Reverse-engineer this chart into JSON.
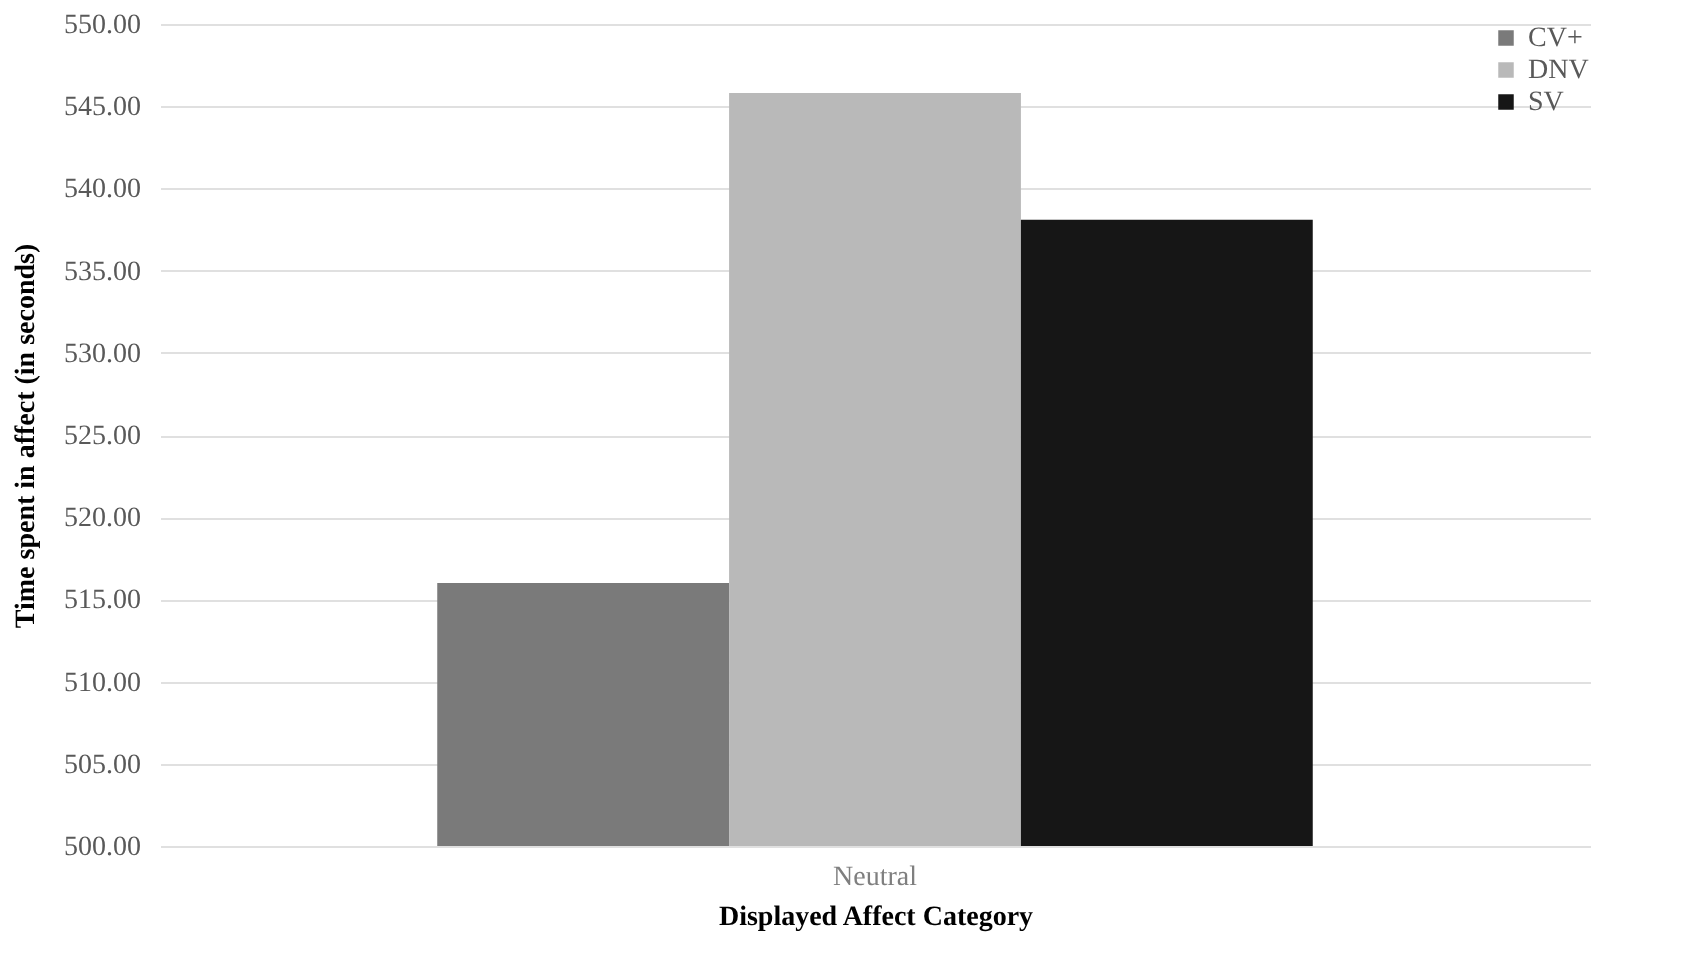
{
  "chart_data": {
    "type": "bar",
    "xlabel": "Displayed Affect Category",
    "ylabel": "Time spent in affect (in seconds)",
    "categories": [
      "Neutral"
    ],
    "series": [
      {
        "name": "CV+",
        "color": "#7a7a7a",
        "values": [
          516.0
        ]
      },
      {
        "name": "DNV",
        "color": "#b9b9b9",
        "values": [
          545.8
        ]
      },
      {
        "name": "SV",
        "color": "#161616",
        "values": [
          538.1
        ]
      }
    ],
    "ylim": [
      500,
      550
    ],
    "yticks": [
      {
        "value": 500,
        "label": "500.00"
      },
      {
        "value": 505,
        "label": "505.00"
      },
      {
        "value": 510,
        "label": "510.00"
      },
      {
        "value": 515,
        "label": "515.00"
      },
      {
        "value": 520,
        "label": "520.00"
      },
      {
        "value": 525,
        "label": "525.00"
      },
      {
        "value": 530,
        "label": "530.00"
      },
      {
        "value": 535,
        "label": "535.00"
      },
      {
        "value": 540,
        "label": "540.00"
      },
      {
        "value": 545,
        "label": "545.00"
      },
      {
        "value": 550,
        "label": "550.00"
      }
    ],
    "grid": "y",
    "legend": "top right"
  }
}
